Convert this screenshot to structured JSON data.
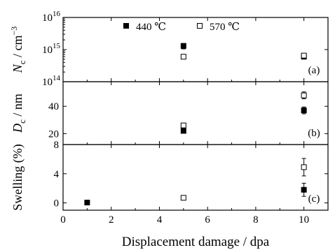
{
  "chart_data": {
    "type": "scatter",
    "xlabel": "Displacement damage / dpa",
    "xlim": [
      0,
      11
    ],
    "xticks": [
      0,
      2,
      4,
      6,
      8,
      10
    ],
    "legend": {
      "placement": "top",
      "entries": [
        {
          "label": "440 ℃",
          "marker": "filled-square"
        },
        {
          "label": "570 ℃",
          "marker": "open-square"
        }
      ]
    },
    "panels": [
      {
        "id": "a",
        "label": "(a)",
        "ylabel_main": "N",
        "ylabel_sub": "c",
        "ylabel_rest": " / cm",
        "ylabel_sup": "−3",
        "yscale": "log",
        "ylim": [
          100000000000000.0,
          1e+16
        ],
        "ytick_exponents": [
          "14",
          "15",
          "16"
        ],
        "ytick_base": "10",
        "series": [
          {
            "name": "440 ℃",
            "points": [
              {
                "x": 5,
                "y": 1300000000000000.0,
                "err": 250000000000000.0
              },
              {
                "x": 10,
                "y": 600000000000000.0,
                "err": 80000000000000.0
              }
            ]
          },
          {
            "name": "570 ℃",
            "points": [
              {
                "x": 5,
                "y": 600000000000000.0,
                "err": 60000000000000.0
              },
              {
                "x": 10,
                "y": 650000000000000.0,
                "err": 70000000000000.0
              }
            ]
          }
        ]
      },
      {
        "id": "b",
        "label": "(b)",
        "ylabel_main": "D",
        "ylabel_sub": "c",
        "ylabel_rest": " / nm",
        "yscale": "linear",
        "ylim": [
          12,
          58
        ],
        "yticks": [
          20,
          40
        ],
        "series": [
          {
            "name": "440 ℃",
            "points": [
              {
                "x": 5,
                "y": 22,
                "err": 1.5
              },
              {
                "x": 10,
                "y": 37,
                "err": 2.5
              }
            ]
          },
          {
            "name": "570 ℃",
            "points": [
              {
                "x": 5,
                "y": 26,
                "err": 1.5
              },
              {
                "x": 10,
                "y": 48,
                "err": 2.5
              }
            ]
          }
        ]
      },
      {
        "id": "c",
        "label": "(c)",
        "ylabel_main": "Swelling (%)",
        "yscale": "linear",
        "ylim": [
          -1,
          8
        ],
        "yticks": [
          0,
          4,
          8
        ],
        "series": [
          {
            "name": "440 ℃",
            "points": [
              {
                "x": 1,
                "y": 0.05,
                "err": 0.1
              },
              {
                "x": 10,
                "y": 1.8,
                "err": 0.9
              }
            ]
          },
          {
            "name": "570 ℃",
            "points": [
              {
                "x": 5,
                "y": 0.7,
                "err": 0.2
              },
              {
                "x": 10,
                "y": 4.9,
                "err": 1.2
              }
            ]
          }
        ]
      }
    ]
  }
}
